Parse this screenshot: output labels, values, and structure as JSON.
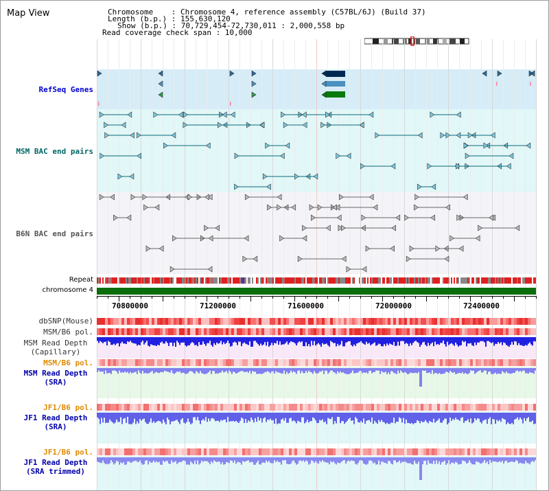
{
  "header": {
    "title": "Map View",
    "info_lines": [
      "Chromosome    : Chromosome 4, reference assembly (C57BL/6J) (Build 37)",
      "Length (b.p.) : 155,630,120",
      "Show (b.p.) : 70,729,454-72,730,011 : 2,000,558 bp",
      "Read coverage check span : 10,000"
    ]
  },
  "tracks": {
    "refseq": "RefSeq Genes",
    "msm_bac": "MSM BAC end pairs",
    "b6n_bac": "B6N BAC end pairs",
    "repeat": "Repeat",
    "chromosome": "chromosome 4",
    "dbsnp": "dbSNP(Mouse)",
    "msm_b6_pol_1": "MSM/B6 pol.",
    "msm_read_depth_cap_1": "MSM Read Depth",
    "msm_read_depth_cap_2": "(Capillary)",
    "msm_b6_pol_2": "MSM/B6 pol.",
    "msm_read_depth_sra_1": "MSM Read Depth",
    "msm_read_depth_sra_2": "(SRA)",
    "jf1_b6_pol_1": "JF1/B6 pol.",
    "jf1_read_depth_sra_1": "JF1 Read Depth",
    "jf1_read_depth_sra_2": "(SRA)",
    "jf1_b6_pol_2": "JF1/B6 pol.",
    "jf1_read_depth_trim_1": "JF1 Read Depth",
    "jf1_read_depth_trim_2": "(SRA trimmed)"
  },
  "axis": {
    "ticks": [
      "70800000",
      "71200000",
      "71600000",
      "72000000",
      "72400000"
    ]
  },
  "colors": {
    "refseq_bg": "#d6ecf7",
    "msm_bac_bg": "#e2f7f7",
    "b6n_bac_bg": "#f4f4f8",
    "chromosome_bar": "#0a6e0a",
    "refseq_label": "#0000cc",
    "msm_label": "#006666",
    "b6n_label": "#555555",
    "pol_orange": "#e08a00",
    "depth_blue": "#0000aa"
  }
}
